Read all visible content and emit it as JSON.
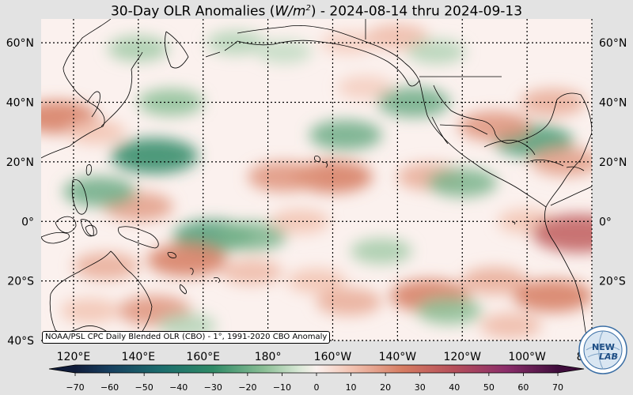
{
  "title": {
    "prefix": "30-Day OLR Anomalies (",
    "unit_base": "W/m",
    "unit_exp": "2",
    "suffix": ") - 2024-08-14 thru 2024-09-13"
  },
  "map": {
    "projection": "plate-carree",
    "lon_range_deg_east": [
      110,
      280
    ],
    "lat_range": [
      -40,
      68
    ],
    "graticule": "dotted",
    "lat_ticks": [
      "60°N",
      "40°N",
      "20°N",
      "0°",
      "20°S",
      "40°S"
    ],
    "lon_ticks": [
      "120°E",
      "140°E",
      "160°E",
      "180°",
      "160°W",
      "140°W",
      "120°W",
      "100°W",
      "80°W"
    ],
    "colors": {
      "positive_anomaly": "#d67c62",
      "negative_anomaly": "#2f8a66",
      "neutral": "#fbf1ee",
      "coastline": "#000000"
    },
    "anomaly_patches": [
      {
        "lon": 115,
        "lat": 35,
        "value": 25
      },
      {
        "lon": 127,
        "lat": 30,
        "value": 10
      },
      {
        "lon": 145,
        "lat": 22,
        "value": -30
      },
      {
        "lon": 150,
        "lat": 40,
        "value": -15
      },
      {
        "lon": 140,
        "lat": 58,
        "value": -12
      },
      {
        "lon": 170,
        "lat": 60,
        "value": -10
      },
      {
        "lon": 185,
        "lat": 57,
        "value": -8
      },
      {
        "lon": 205,
        "lat": 60,
        "value": 8
      },
      {
        "lon": 220,
        "lat": 62,
        "value": 12
      },
      {
        "lon": 232,
        "lat": 57,
        "value": -10
      },
      {
        "lon": 210,
        "lat": 45,
        "value": 8
      },
      {
        "lon": 225,
        "lat": 40,
        "value": -20
      },
      {
        "lon": 204,
        "lat": 29,
        "value": -20
      },
      {
        "lon": 200,
        "lat": 15,
        "value": 25
      },
      {
        "lon": 185,
        "lat": 15,
        "value": 20
      },
      {
        "lon": 230,
        "lat": 15,
        "value": 15
      },
      {
        "lon": 240,
        "lat": 13,
        "value": -18
      },
      {
        "lon": 262,
        "lat": 27,
        "value": -25
      },
      {
        "lon": 250,
        "lat": 32,
        "value": 20
      },
      {
        "lon": 268,
        "lat": 40,
        "value": 15
      },
      {
        "lon": 272,
        "lat": 20,
        "value": 18
      },
      {
        "lon": 260,
        "lat": 0,
        "value": 10
      },
      {
        "lon": 276,
        "lat": -4,
        "value": 35
      },
      {
        "lon": 140,
        "lat": 5,
        "value": 18
      },
      {
        "lon": 128,
        "lat": 10,
        "value": -20
      },
      {
        "lon": 163,
        "lat": -5,
        "value": -25
      },
      {
        "lon": 175,
        "lat": -5,
        "value": -18
      },
      {
        "lon": 190,
        "lat": 0,
        "value": 10
      },
      {
        "lon": 155,
        "lat": -13,
        "value": 25
      },
      {
        "lon": 175,
        "lat": -17,
        "value": 12
      },
      {
        "lon": 130,
        "lat": -15,
        "value": 15
      },
      {
        "lon": 125,
        "lat": -30,
        "value": 10
      },
      {
        "lon": 145,
        "lat": -30,
        "value": 20
      },
      {
        "lon": 155,
        "lat": -35,
        "value": -10
      },
      {
        "lon": 215,
        "lat": -10,
        "value": -12
      },
      {
        "lon": 195,
        "lat": -20,
        "value": 10
      },
      {
        "lon": 205,
        "lat": -27,
        "value": 15
      },
      {
        "lon": 230,
        "lat": -25,
        "value": 25
      },
      {
        "lon": 236,
        "lat": -30,
        "value": -15
      },
      {
        "lon": 250,
        "lat": -20,
        "value": 15
      },
      {
        "lon": 268,
        "lat": -25,
        "value": 25
      },
      {
        "lon": 255,
        "lat": -35,
        "value": 12
      }
    ]
  },
  "credit": "NOAA/PSL CPC Daily Blended OLR (CBO) - 1°, 1991-2020 CBO Anomaly",
  "colorbar": {
    "ticks": [
      "-70",
      "-60",
      "-50",
      "-40",
      "-30",
      "-20",
      "-10",
      "0",
      "10",
      "20",
      "30",
      "40",
      "50",
      "60",
      "70"
    ],
    "range": [
      -75,
      75
    ],
    "stops": [
      {
        "value": -75,
        "color": "#101c3a"
      },
      {
        "value": -60,
        "color": "#173f5f"
      },
      {
        "value": -45,
        "color": "#1c6d6d"
      },
      {
        "value": -30,
        "color": "#2f8a66"
      },
      {
        "value": -15,
        "color": "#8cbf96"
      },
      {
        "value": -5,
        "color": "#d9e8d6"
      },
      {
        "value": 0,
        "color": "#fbf1ee"
      },
      {
        "value": 10,
        "color": "#f2c3b2"
      },
      {
        "value": 25,
        "color": "#d67c62"
      },
      {
        "value": 40,
        "color": "#b54e5a"
      },
      {
        "value": 55,
        "color": "#8b2e6a"
      },
      {
        "value": 75,
        "color": "#3f0d3c"
      }
    ]
  },
  "logo": {
    "text_top": "NEW",
    "text_bottom": "LAB",
    "ring_color": "#3a6ea5"
  }
}
